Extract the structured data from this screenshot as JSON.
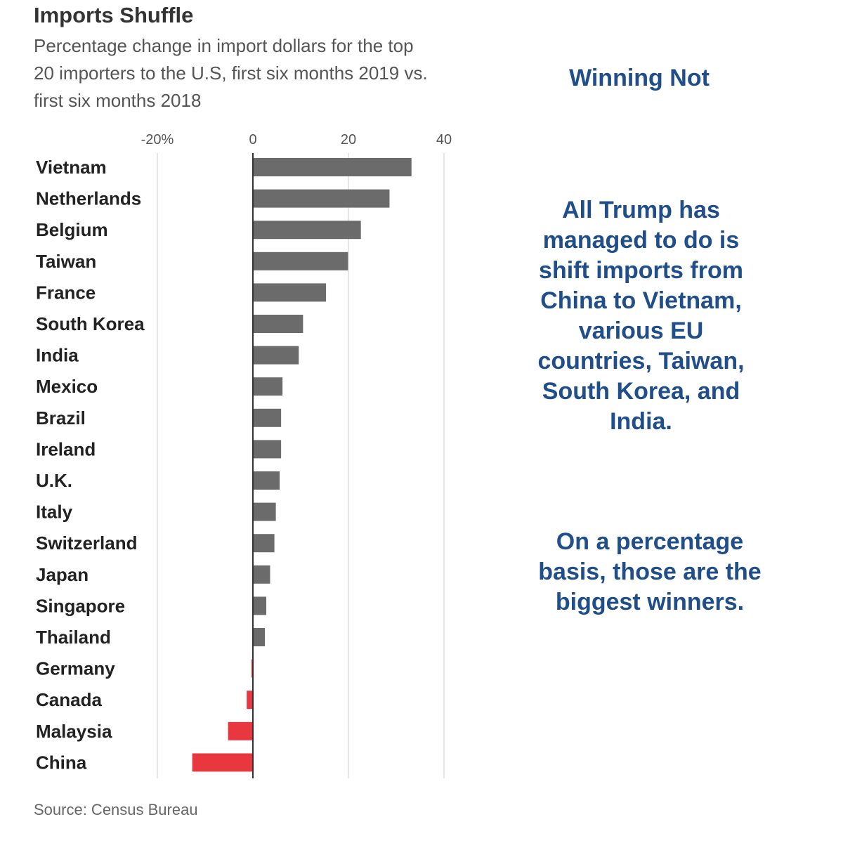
{
  "title": "Imports Shuffle",
  "subtitle": "Percentage change in import dollars for the top 20 importers to the U.S, first six months 2019 vs. first six months 2018",
  "source": "Source: Census Bureau",
  "annotations": {
    "headline": "Winning Not",
    "body": "All Trump has managed to do is shift imports from China to Vietnam, various EU countries, Taiwan, South Korea, and India.",
    "footer": "On a percentage basis, those are the biggest winners."
  },
  "colors": {
    "positive": "#6b6b6b",
    "negative": "#e8373f",
    "annotation": "#1f4e8a",
    "grid": "#dddddd",
    "axis": "#333333"
  },
  "chart_data": {
    "type": "bar",
    "orientation": "horizontal",
    "title": "Imports Shuffle",
    "subtitle": "Percentage change in import dollars for the top 20 importers to the U.S, first six months 2019 vs. first six months 2018",
    "categories": [
      "Vietnam",
      "Netherlands",
      "Belgium",
      "Taiwan",
      "France",
      "South Korea",
      "India",
      "Mexico",
      "Brazil",
      "Ireland",
      "U.K.",
      "Italy",
      "Switzerland",
      "Japan",
      "Singapore",
      "Thailand",
      "Germany",
      "Canada",
      "Malaysia",
      "China"
    ],
    "values": [
      33.2,
      28.6,
      22.6,
      19.9,
      15.3,
      10.5,
      9.6,
      6.2,
      5.9,
      5.9,
      5.6,
      4.8,
      4.5,
      3.6,
      2.8,
      2.5,
      -0.3,
      -1.3,
      -5.2,
      -12.7
    ],
    "xlim": [
      -20,
      40
    ],
    "xticks": [
      -20,
      0,
      20,
      40
    ],
    "xtick_labels": [
      "-20%",
      "0",
      "20",
      "40"
    ],
    "grid": true,
    "legend": "none"
  }
}
